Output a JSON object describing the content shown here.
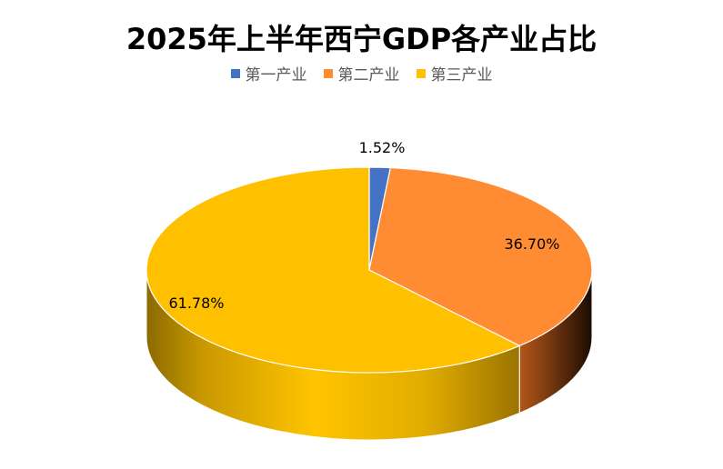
{
  "chart_data": {
    "type": "pie",
    "title": "2025年上半年西宁GDP各产业占比",
    "legend_position": "top",
    "categories": [
      "第一产业",
      "第二产业",
      "第三产业"
    ],
    "values": [
      1.52,
      36.7,
      61.78
    ],
    "labels": [
      "1.52%",
      "36.70%",
      "61.78%"
    ],
    "colors": [
      "#4472C4",
      "#FF8C32",
      "#FFC000"
    ]
  }
}
